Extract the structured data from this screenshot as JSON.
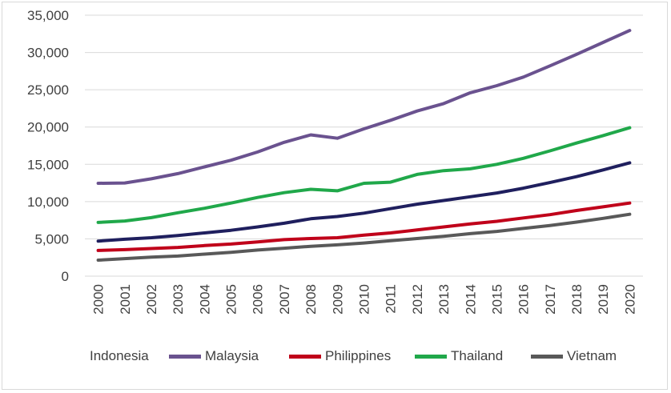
{
  "chart_data": {
    "type": "line",
    "title": "",
    "xlabel": "",
    "ylabel": "",
    "x": [
      "2000",
      "2001",
      "2002",
      "2003",
      "2004",
      "2005",
      "2006",
      "2007",
      "2008",
      "2009",
      "2010",
      "2011",
      "2012",
      "2013",
      "2014",
      "2015",
      "2016",
      "2017",
      "2018",
      "2019",
      "2020"
    ],
    "ylim": [
      0,
      35000
    ],
    "yticks": [
      "0",
      "5,000",
      "10,000",
      "15,000",
      "20,000",
      "25,000",
      "30,000",
      "35,000"
    ],
    "ytick_values": [
      0,
      5000,
      10000,
      15000,
      20000,
      25000,
      30000,
      35000
    ],
    "grid": "horizontal",
    "legend_position": "bottom",
    "series": [
      {
        "name": "Indonesia",
        "color": "#1f1f5e",
        "values": [
          4700,
          4950,
          5150,
          5450,
          5800,
          6150,
          6600,
          7100,
          7700,
          8000,
          8450,
          9050,
          9650,
          10150,
          10650,
          11150,
          11800,
          12550,
          13350,
          14250,
          15200
        ]
      },
      {
        "name": "Malaysia",
        "color": "#6a528f",
        "values": [
          12450,
          12500,
          13050,
          13750,
          14650,
          15550,
          16650,
          17950,
          18950,
          18500,
          19750,
          20900,
          22150,
          23150,
          24600,
          25550,
          26700,
          28200,
          29750,
          31350,
          32950
        ]
      },
      {
        "name": "Philippines",
        "color": "#c0001a",
        "values": [
          3450,
          3550,
          3700,
          3850,
          4100,
          4300,
          4600,
          4900,
          5050,
          5150,
          5500,
          5800,
          6200,
          6600,
          7000,
          7350,
          7800,
          8250,
          8800,
          9300,
          9800
        ]
      },
      {
        "name": "Thailand",
        "color": "#20a84a",
        "values": [
          7200,
          7400,
          7850,
          8500,
          9100,
          9800,
          10550,
          11200,
          11650,
          11450,
          12450,
          12600,
          13650,
          14150,
          14400,
          15000,
          15800,
          16800,
          17850,
          18850,
          19900
        ]
      },
      {
        "name": "Vietnam",
        "color": "#595959",
        "values": [
          2150,
          2350,
          2550,
          2700,
          2950,
          3200,
          3500,
          3750,
          4000,
          4200,
          4450,
          4750,
          5050,
          5350,
          5700,
          6000,
          6400,
          6800,
          7250,
          7750,
          8300
        ]
      }
    ]
  }
}
